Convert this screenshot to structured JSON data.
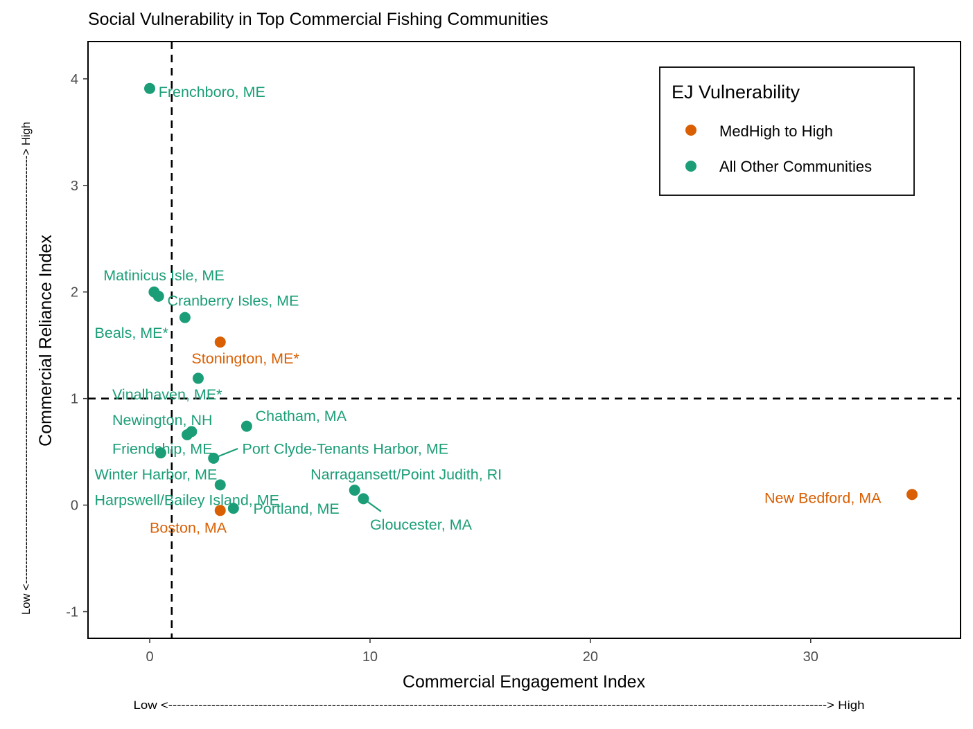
{
  "chart_data": {
    "type": "scatter",
    "title": "Social Vulnerability in Top Commercial Fishing Communities",
    "xlabel": "Commercial Engagement Index",
    "ylabel": "Commercial Reliance Index",
    "x_axis_note": "Low <---------------------------------------------------------------------------------------------------------------------------------------------------------> High",
    "y_axis_note": "Low <----------------------------------------------------------------------------------------------------------------> High",
    "xlim": [
      -2.8,
      36.8
    ],
    "ylim": [
      -1.25,
      4.35
    ],
    "x_ticks": [
      0,
      10,
      20,
      30
    ],
    "y_ticks": [
      -1,
      0,
      1,
      2,
      3,
      4
    ],
    "x_tick_labels": [
      "0",
      "10",
      "20",
      "30"
    ],
    "y_tick_labels": [
      "-1",
      "0",
      "1",
      "2",
      "3",
      "4"
    ],
    "reference_lines": {
      "x": 1,
      "y": 1,
      "style": "dashed"
    },
    "grid": false,
    "legend": {
      "title": "EJ Vulnerability",
      "position": "top-right",
      "entries": [
        {
          "label": "MedHigh to High",
          "color": "#d95f02"
        },
        {
          "label": "All Other Communities",
          "color": "#1b9e77"
        }
      ]
    },
    "colors": {
      "MedHigh to High": "#d95f02",
      "All Other Communities": "#1b9e77"
    },
    "points": [
      {
        "label": "Frenchboro, ME",
        "x": 0.0,
        "y": 3.91,
        "group": "All Other Communities",
        "label_x": 0.4,
        "label_y": 3.83,
        "anchor": "start"
      },
      {
        "label": "Matinicus Isle, ME",
        "x": 0.2,
        "y": 2.0,
        "group": "All Other Communities",
        "label_x": -2.1,
        "label_y": 2.11,
        "anchor": "start"
      },
      {
        "label": "Cranberry Isles, ME",
        "x": 0.4,
        "y": 1.96,
        "group": "All Other Communities",
        "label_x": 0.8,
        "label_y": 1.87,
        "anchor": "start"
      },
      {
        "label": "Beals, ME*",
        "x": 1.6,
        "y": 1.76,
        "group": "All Other Communities",
        "label_x": -2.5,
        "label_y": 1.57,
        "anchor": "start"
      },
      {
        "label": "Stonington, ME*",
        "x": 3.2,
        "y": 1.53,
        "group": "MedHigh to High",
        "label_x": 1.9,
        "label_y": 1.33,
        "anchor": "start"
      },
      {
        "label": "Vinalhaven, ME*",
        "x": 2.2,
        "y": 1.19,
        "group": "All Other Communities",
        "label_x": -1.7,
        "label_y": 0.99,
        "anchor": "start"
      },
      {
        "label": "Chatham, MA",
        "x": 4.4,
        "y": 0.74,
        "group": "All Other Communities",
        "label_x": 4.8,
        "label_y": 0.79,
        "anchor": "start"
      },
      {
        "label": "Newington, NH",
        "x": 1.9,
        "y": 0.69,
        "group": "All Other Communities",
        "label_x": -1.7,
        "label_y": 0.75,
        "anchor": "start"
      },
      {
        "label": "Friendship, ME",
        "x": 1.7,
        "y": 0.66,
        "group": "All Other Communities",
        "label_x": -1.7,
        "label_y": 0.48,
        "anchor": "start"
      },
      {
        "label": "Port Clyde-Tenants Harbor, ME",
        "x": 2.9,
        "y": 0.44,
        "group": "All Other Communities",
        "label_x": 4.2,
        "label_y": 0.48,
        "anchor": "start"
      },
      {
        "label": "Winter Harbor, ME",
        "x": 0.5,
        "y": 0.49,
        "group": "All Other Communities",
        "label_x": -2.5,
        "label_y": 0.24,
        "anchor": "start"
      },
      {
        "label": "Harpswell/Bailey Island, ME",
        "x": 3.2,
        "y": 0.19,
        "group": "All Other Communities",
        "label_x": -2.5,
        "label_y": 0.0,
        "anchor": "start"
      },
      {
        "label": "Narragansett/Point Judith, RI",
        "x": 9.3,
        "y": 0.14,
        "group": "All Other Communities",
        "label_x": 7.3,
        "label_y": 0.24,
        "anchor": "start"
      },
      {
        "label": "Gloucester, MA",
        "x": 9.7,
        "y": 0.06,
        "group": "All Other Communities",
        "label_x": 10.0,
        "label_y": -0.23,
        "anchor": "start"
      },
      {
        "label": "Portland, ME",
        "x": 3.8,
        "y": -0.03,
        "group": "All Other Communities",
        "label_x": 4.7,
        "label_y": -0.08,
        "anchor": "start"
      },
      {
        "label": "Boston, MA",
        "x": 3.2,
        "y": -0.05,
        "group": "MedHigh to High",
        "label_x": 0.0,
        "label_y": -0.26,
        "anchor": "start"
      },
      {
        "label": "New Bedford, MA",
        "x": 34.6,
        "y": 0.1,
        "group": "MedHigh to High",
        "label_x": 27.9,
        "label_y": 0.02,
        "anchor": "start"
      }
    ],
    "leader_lines": [
      {
        "from": [
          2.9,
          0.44
        ],
        "to": [
          4.0,
          0.53
        ]
      },
      {
        "from": [
          9.7,
          0.06
        ],
        "to": [
          10.5,
          -0.06
        ]
      }
    ]
  }
}
